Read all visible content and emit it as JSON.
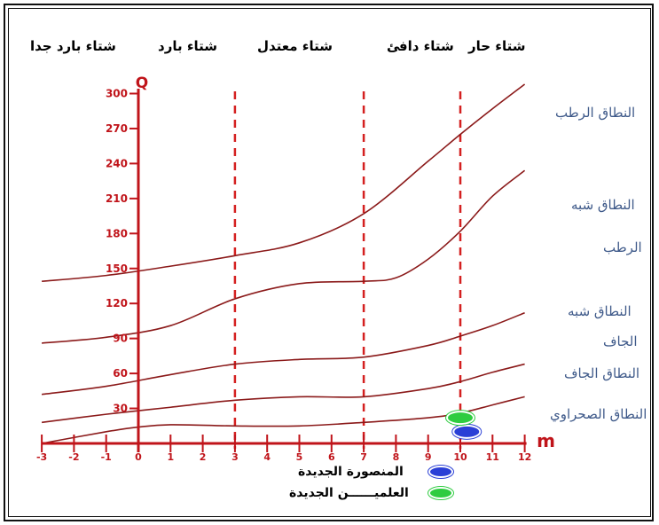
{
  "headers": [
    {
      "text": "شتاء بارد جدا"
    },
    {
      "text": "شتاء بارد"
    },
    {
      "text": "شتاء معتدل"
    },
    {
      "text": "شتاء دافئ"
    },
    {
      "text": "شتاء حار"
    }
  ],
  "zones": [
    {
      "text": "النطاق الرطب"
    },
    {
      "text": "النطاق شبه"
    },
    {
      "text": "الرطب"
    },
    {
      "text": "النطاق شبه"
    },
    {
      "text": "الجاف"
    },
    {
      "text": "النطاق الجاف"
    },
    {
      "text": "النطاق الصحراوي"
    }
  ],
  "legend": {
    "items": [
      {
        "label": "المنصورة الجديدة",
        "color": "#2a3fd6"
      },
      {
        "label": "العلميــــــن الجديدة",
        "color": "#2ecc40"
      }
    ]
  },
  "colors": {
    "axis": "#c0141a",
    "curve": "#8b1a1a",
    "divider": "#d42020",
    "zone_text": "#3f5a8a"
  },
  "chart_data": {
    "type": "line",
    "title": "",
    "xlabel": "m",
    "ylabel": "Q",
    "xlim": [
      -3,
      12
    ],
    "ylim": [
      0,
      300
    ],
    "x_ticks": [
      "-3",
      "-2",
      "-1",
      "0",
      "1",
      "2",
      "3",
      "4",
      "5",
      "6",
      "7",
      "8",
      "9",
      "10",
      "11",
      "12"
    ],
    "y_ticks": [
      "30",
      "60",
      "90",
      "120",
      "150",
      "180",
      "210",
      "240",
      "270",
      "300"
    ],
    "dividers_x": [
      3,
      7,
      10
    ],
    "series": [
      {
        "x": [
          -3,
          -1,
          1,
          3,
          5,
          7,
          9,
          10,
          11,
          12
        ],
        "y": [
          139,
          144,
          152,
          161,
          172,
          197,
          242,
          265,
          287,
          308
        ]
      },
      {
        "x": [
          -3,
          -1,
          1,
          3,
          5,
          7,
          8,
          9,
          10,
          11,
          12
        ],
        "y": [
          86,
          91,
          101,
          124,
          137,
          139,
          142,
          158,
          182,
          212,
          234
        ]
      },
      {
        "x": [
          -3,
          -1,
          1,
          3,
          5,
          7,
          9,
          10,
          11,
          12
        ],
        "y": [
          42,
          49,
          59,
          68,
          72,
          74,
          84,
          92,
          101,
          112
        ]
      },
      {
        "x": [
          -3,
          -1,
          1,
          3,
          5,
          7,
          9,
          10,
          11,
          12
        ],
        "y": [
          18,
          25,
          31,
          37,
          40,
          40,
          47,
          53,
          61,
          68
        ]
      },
      {
        "x": [
          -3,
          -1,
          0,
          1,
          3,
          5,
          7,
          9,
          10,
          11,
          12
        ],
        "y": [
          0,
          10,
          14,
          16,
          15,
          15,
          18,
          22,
          26,
          33,
          40
        ]
      }
    ],
    "points": [
      {
        "name": "المنصورة الجديدة",
        "x": 10.2,
        "y": 10,
        "color": "#2a3fd6"
      },
      {
        "name": "العلميــــــن الجديدة",
        "x": 10.0,
        "y": 22,
        "color": "#2ecc40"
      }
    ]
  }
}
